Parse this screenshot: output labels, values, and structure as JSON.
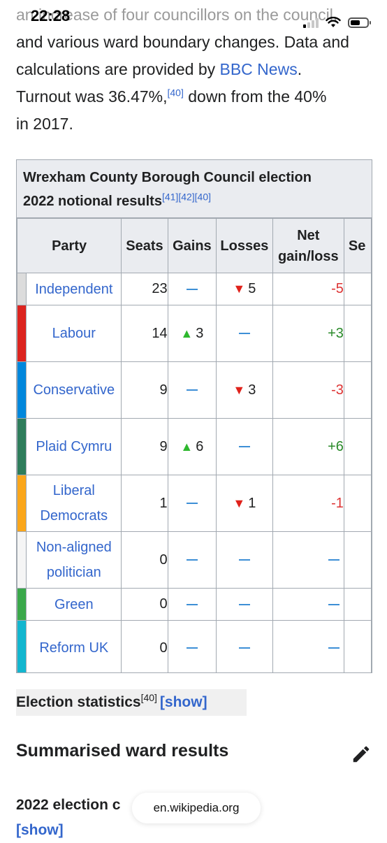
{
  "status_bar": {
    "time": "22:28"
  },
  "intro": {
    "line1": "an increase of four councillors on the council,",
    "line2a": "and various ward boundary changes. Data and",
    "line3a": "calculations are provided by ",
    "line3_link": "BBC News",
    "line3b": ".",
    "line4a": "Turnout was 36.47%,",
    "line4_ref": "[40]",
    "line4b": " down from the 40%",
    "line5": "in 2017."
  },
  "table": {
    "caption_line1": "Wrexham County Borough Council election",
    "caption_line2": "2022 notional results",
    "caption_refs": "[41][42][40]",
    "headers": {
      "party": "Party",
      "seats": "Seats",
      "gains": "Gains",
      "losses": "Losses",
      "net_line1": "Net",
      "net_line2": "gain/loss",
      "next": "Se"
    },
    "rows": [
      {
        "party": "Independent",
        "color": "#dcdcdc",
        "seats": "23",
        "gains": "",
        "losses": "5",
        "net": "-5"
      },
      {
        "party": "Labour",
        "color": "#dc241f",
        "seats": "14",
        "gains": "3",
        "losses": "",
        "net": "+3"
      },
      {
        "party": "Conservative",
        "color": "#0087dc",
        "seats": "9",
        "gains": "",
        "losses": "3",
        "net": "-3"
      },
      {
        "party": "Plaid Cymru",
        "color": "#2e7d5b",
        "seats": "9",
        "gains": "6",
        "losses": "",
        "net": "+6"
      },
      {
        "party_line1": "Liberal",
        "party_line2": "Democrats",
        "color": "#faa61a",
        "seats": "1",
        "gains": "",
        "losses": "1",
        "net": "-1"
      },
      {
        "party_line1": "Non-aligned",
        "party_line2": "politician",
        "color": "#f5f5f5",
        "seats": "0",
        "gains": "",
        "losses": "",
        "net": ""
      },
      {
        "party": "Green",
        "color": "#3aa84a",
        "seats": "0",
        "gains": "",
        "losses": "",
        "net": ""
      },
      {
        "party": "Reform UK",
        "color": "#12b6cf",
        "seats": "0",
        "gains": "",
        "losses": "",
        "net": ""
      }
    ]
  },
  "stats": {
    "label": "Election statistics",
    "ref": "[40]",
    "toggle": "[show]"
  },
  "section": {
    "heading": "Summarised ward results",
    "edit_icon": "pencil-icon"
  },
  "subsection": {
    "label": "2022 election c",
    "toggle": "[show]"
  },
  "browser": {
    "url": "en.wikipedia.org"
  }
}
